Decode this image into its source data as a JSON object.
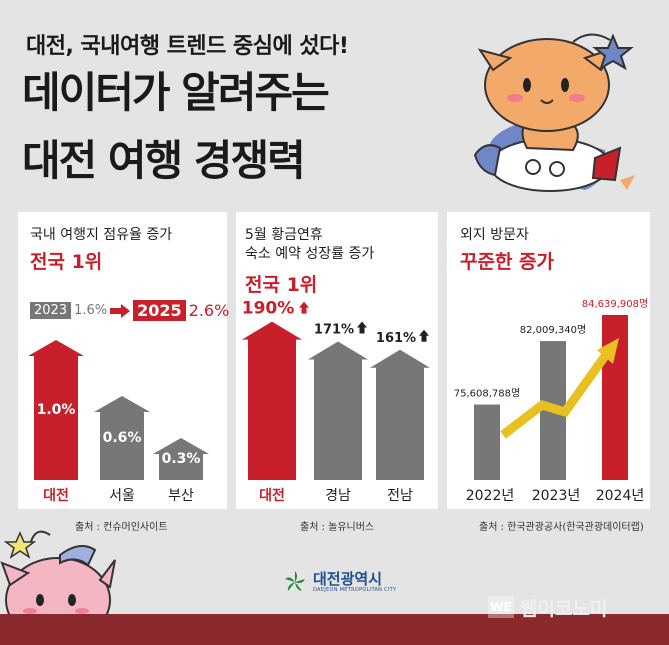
{
  "header": {
    "subtitle": "대전, 국내여행 트렌드 중심에 섰다!",
    "title_line1": "데이터가 알려주는",
    "title_line2": "대전 여행 경쟁력"
  },
  "colors": {
    "red": "#c8202a",
    "gray": "#777777",
    "gold": "#e8c020",
    "bar_bottom": "#8a2a2f"
  },
  "chart_data": [
    {
      "type": "bar",
      "title": "국내 여행지 점유율 증가",
      "headline": "전국 1위",
      "comparison": {
        "from_year": "2023",
        "from_value": "1.6%",
        "to_year": "2025",
        "to_value": "2.6%"
      },
      "categories": [
        "대전",
        "서울",
        "부산"
      ],
      "values": [
        1.0,
        0.6,
        0.3
      ],
      "value_labels": [
        "1.0%",
        "0.6%",
        "0.3%"
      ],
      "highlight": "대전",
      "source": "출처 : 컨슈머인사이트"
    },
    {
      "type": "bar",
      "title_line1": "5월 황금연휴",
      "title_line2": "숙소 예약 성장률 증가",
      "headline": "전국 1위",
      "categories": [
        "대전",
        "경남",
        "전남"
      ],
      "values": [
        190,
        171,
        161
      ],
      "value_labels": [
        "190%",
        "171%",
        "161%"
      ],
      "highlight": "대전",
      "source": "출처 : 놀유니버스"
    },
    {
      "type": "bar",
      "title": "외지 방문자",
      "headline": "꾸준한 증가",
      "categories": [
        "2022년",
        "2023년",
        "2024년"
      ],
      "values": [
        75608788,
        82009340,
        84639908
      ],
      "value_labels": [
        "75,608,788명",
        "82,009,340명",
        "84,639,908명"
      ],
      "highlight": "2024년",
      "source": "출처 : 한국관광공사(한국관광데이터랩)"
    }
  ],
  "footer": {
    "logo_text": "대전광역시",
    "logo_sub": "DAEJEON METROPOLITAN CITY",
    "watermark_box": "WE",
    "watermark": "웹이코노미"
  }
}
